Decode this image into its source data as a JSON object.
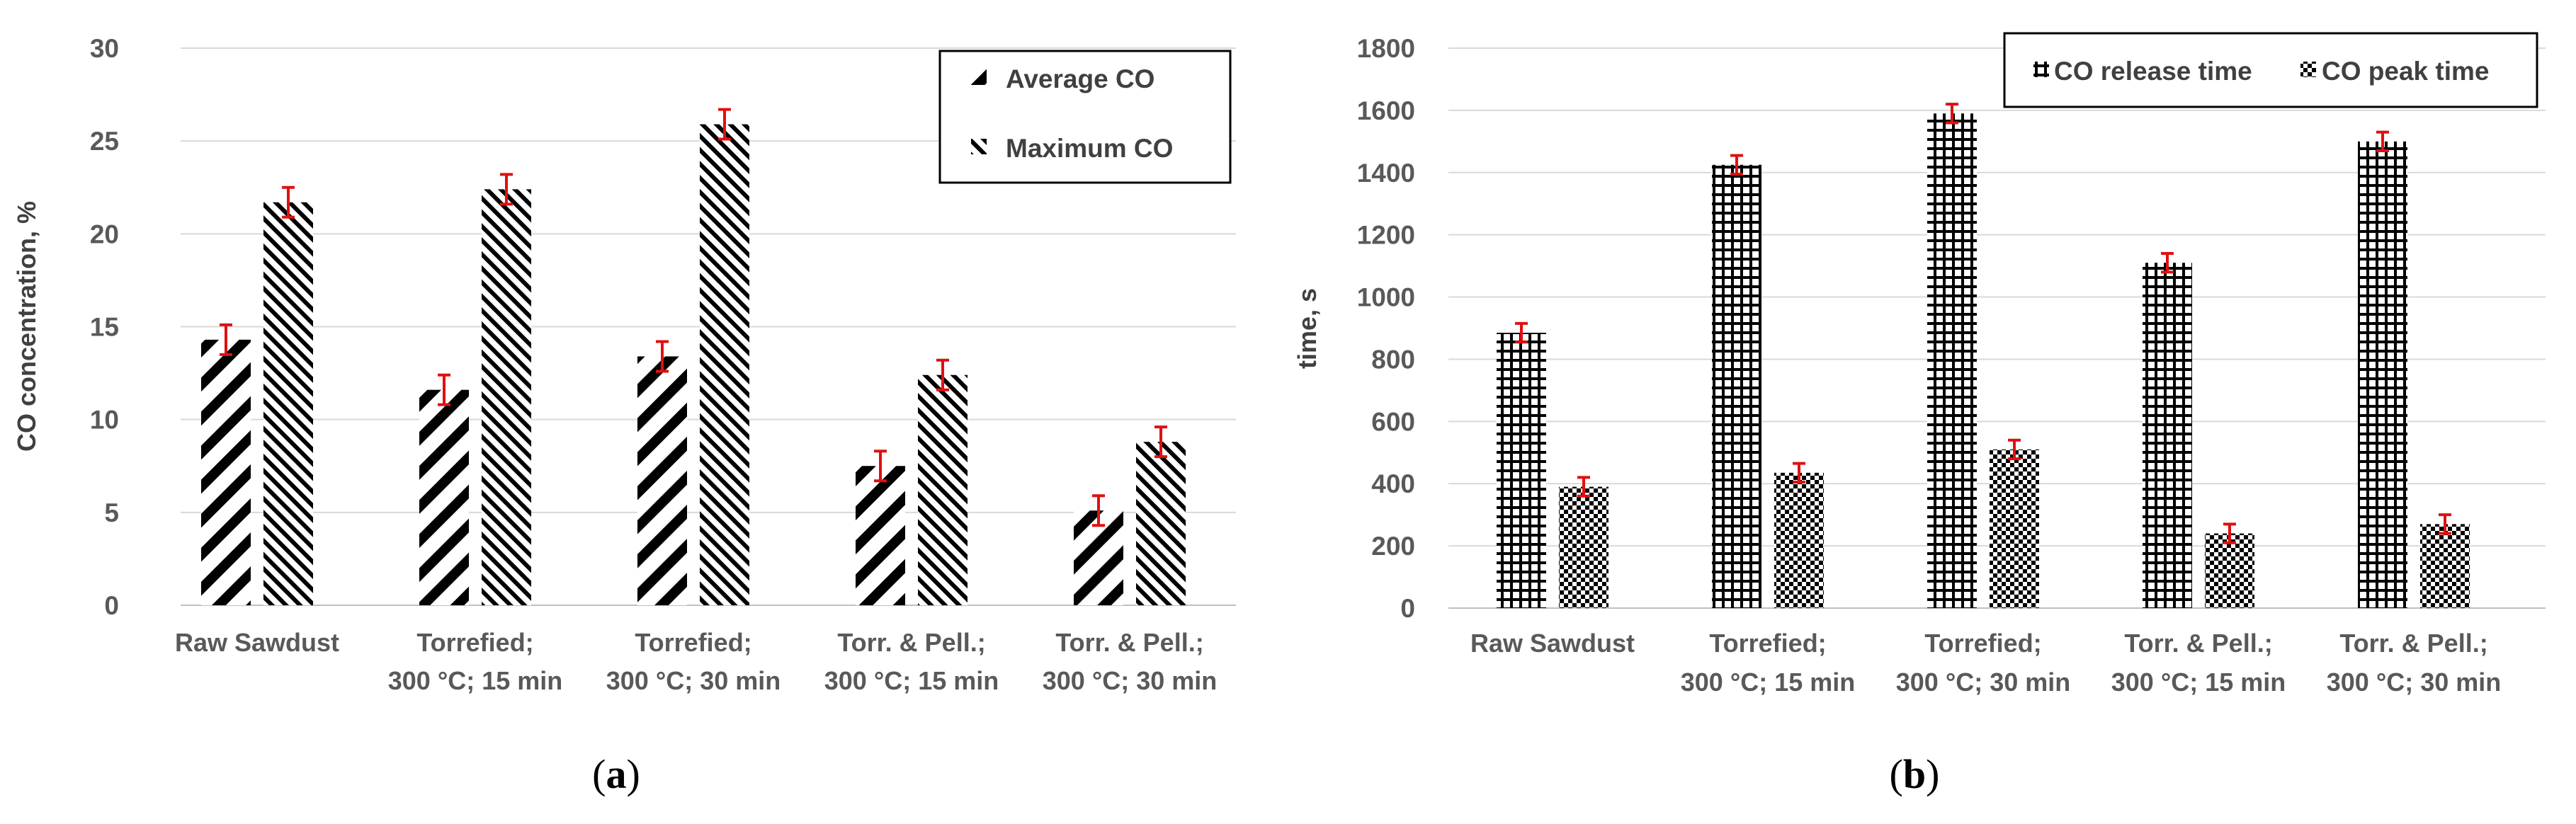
{
  "chart_data": [
    {
      "type": "bar",
      "panel_label": "a",
      "title": "",
      "xlabel": "",
      "ylabel": "CO concentration, %",
      "ylim": [
        0,
        30
      ],
      "yticks": [
        0,
        5,
        10,
        15,
        20,
        25,
        30
      ],
      "grid": true,
      "legend_position": "top-right",
      "categories": [
        [
          "Raw Sawdust"
        ],
        [
          "Torrefied;",
          "300 °C; 15 min"
        ],
        [
          "Torrefied;",
          "300 °C; 30 min"
        ],
        [
          "Torr. & Pell.;",
          "300 °C; 15 min"
        ],
        [
          "Torr. & Pell.;",
          "300 °C; 30 min"
        ]
      ],
      "series": [
        {
          "name": "Average CO",
          "pattern": "diag-wide",
          "values": [
            14.3,
            11.6,
            13.4,
            7.5,
            5.1
          ],
          "errors": [
            0.8,
            0.8,
            0.8,
            0.8,
            0.8
          ]
        },
        {
          "name": "Maximum CO",
          "pattern": "diag-narrow",
          "values": [
            21.7,
            22.4,
            25.9,
            12.4,
            8.8
          ],
          "errors": [
            0.8,
            0.8,
            0.8,
            0.8,
            0.8
          ]
        }
      ],
      "colors": {
        "bar": "#000000",
        "error": "#e01010",
        "grid": "#d9d9d9"
      }
    },
    {
      "type": "bar",
      "panel_label": "b",
      "title": "",
      "xlabel": "",
      "ylabel": "time, s",
      "ylim": [
        0,
        1800
      ],
      "yticks": [
        0,
        200,
        400,
        600,
        800,
        1000,
        1200,
        1400,
        1600,
        1800
      ],
      "grid": true,
      "legend_position": "top-right",
      "categories": [
        [
          "Raw Sawdust"
        ],
        [
          "Torrefied;",
          "300 °C; 15 min"
        ],
        [
          "Torrefied;",
          "300 °C; 30 min"
        ],
        [
          "Torr. & Pell.;",
          "300 °C; 15 min"
        ],
        [
          "Torr. & Pell.;",
          "300 °C; 30 min"
        ]
      ],
      "series": [
        {
          "name": "CO release time",
          "pattern": "grid",
          "values": [
            885,
            1425,
            1590,
            1110,
            1500
          ],
          "errors": [
            30,
            30,
            30,
            30,
            30
          ]
        },
        {
          "name": "CO peak time",
          "pattern": "checker",
          "values": [
            390,
            435,
            510,
            240,
            270
          ],
          "errors": [
            30,
            30,
            30,
            30,
            30
          ]
        }
      ],
      "colors": {
        "bar": "#000000",
        "error": "#e01010",
        "grid": "#d9d9d9"
      }
    }
  ]
}
